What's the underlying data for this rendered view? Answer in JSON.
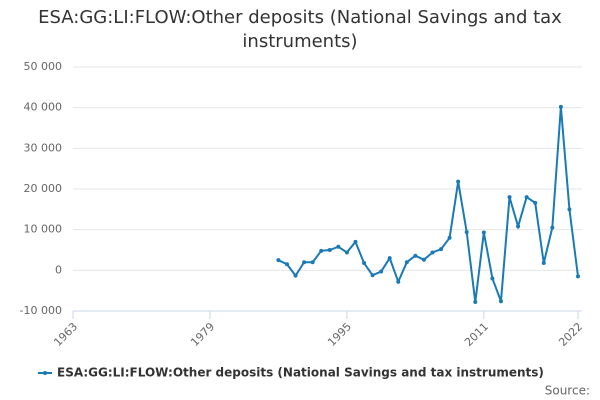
{
  "chart_data": {
    "type": "line",
    "title": "ESA:GG:LI:FLOW:Other deposits (National Savings and tax instruments)",
    "x": [
      1987,
      1988,
      1989,
      1990,
      1991,
      1992,
      1993,
      1994,
      1995,
      1996,
      1997,
      1998,
      1999,
      2000,
      2001,
      2002,
      2003,
      2004,
      2005,
      2006,
      2007,
      2008,
      2009,
      2010,
      2011,
      2012,
      2013,
      2014,
      2015,
      2016,
      2017,
      2018,
      2019,
      2020,
      2021,
      2022
    ],
    "series": [
      {
        "name": "ESA:GG:LI:FLOW:Other deposits (National Savings and tax instruments)",
        "color": "#1a7ab5",
        "values": [
          2500,
          1500,
          -1300,
          2000,
          2000,
          4800,
          5000,
          5800,
          4400,
          7000,
          1800,
          -1200,
          -300,
          3000,
          -2800,
          2000,
          3600,
          2600,
          4400,
          5200,
          8000,
          21800,
          9400,
          -7800,
          9300,
          -2000,
          -7600,
          18000,
          10800,
          18000,
          16600,
          1800,
          10500,
          40200,
          15000,
          -1500
        ]
      }
    ],
    "xlim": [
      1963,
      2022
    ],
    "xticks": [
      1963,
      1979,
      1995,
      2011,
      2022
    ],
    "ylim": [
      -10000,
      50000
    ],
    "yticks": [
      {
        "value": -10000,
        "label": "-10 000"
      },
      {
        "value": 0,
        "label": "0"
      },
      {
        "value": 10000,
        "label": "10 000"
      },
      {
        "value": 20000,
        "label": "20 000"
      },
      {
        "value": 30000,
        "label": "30 000"
      },
      {
        "value": 40000,
        "label": "40 000"
      },
      {
        "value": 50000,
        "label": "50 000"
      }
    ],
    "grid": true,
    "legend": "bottom",
    "source": "Source:"
  }
}
